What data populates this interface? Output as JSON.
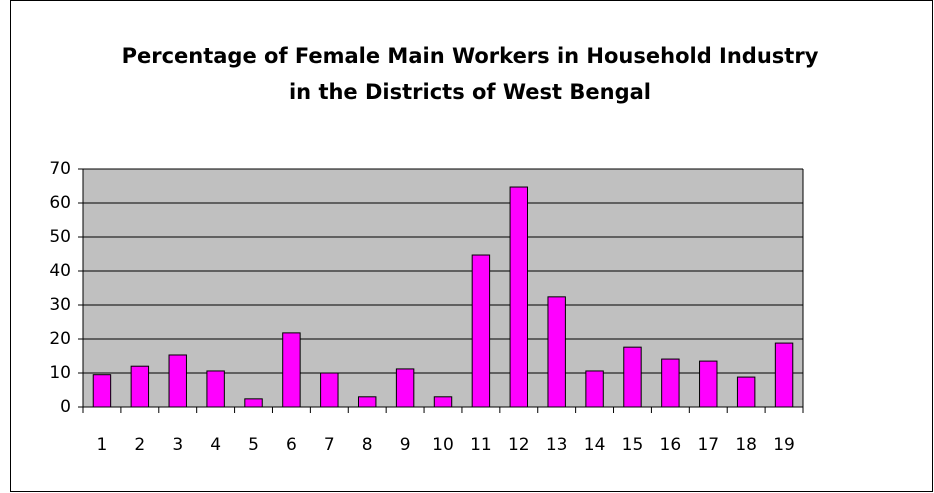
{
  "chart_data": {
    "type": "bar",
    "title": [
      "Percentage of  Female Main Workers in Household Industry",
      "in the Districts of West Bengal"
    ],
    "categories": [
      "1",
      "2",
      "3",
      "4",
      "5",
      "6",
      "7",
      "8",
      "9",
      "10",
      "11",
      "12",
      "13",
      "14",
      "15",
      "16",
      "17",
      "18",
      "19"
    ],
    "values": [
      9.5,
      12,
      15.3,
      10.6,
      2.4,
      21.8,
      10,
      3,
      11.2,
      3,
      44.7,
      64.7,
      32.4,
      10.6,
      17.6,
      14.1,
      13.5,
      8.8,
      18.8
    ],
    "color": "#ff00ff",
    "ylim": [
      0,
      70
    ],
    "yticks": [
      0,
      10,
      20,
      30,
      40,
      50,
      60,
      70
    ],
    "grid": true
  }
}
